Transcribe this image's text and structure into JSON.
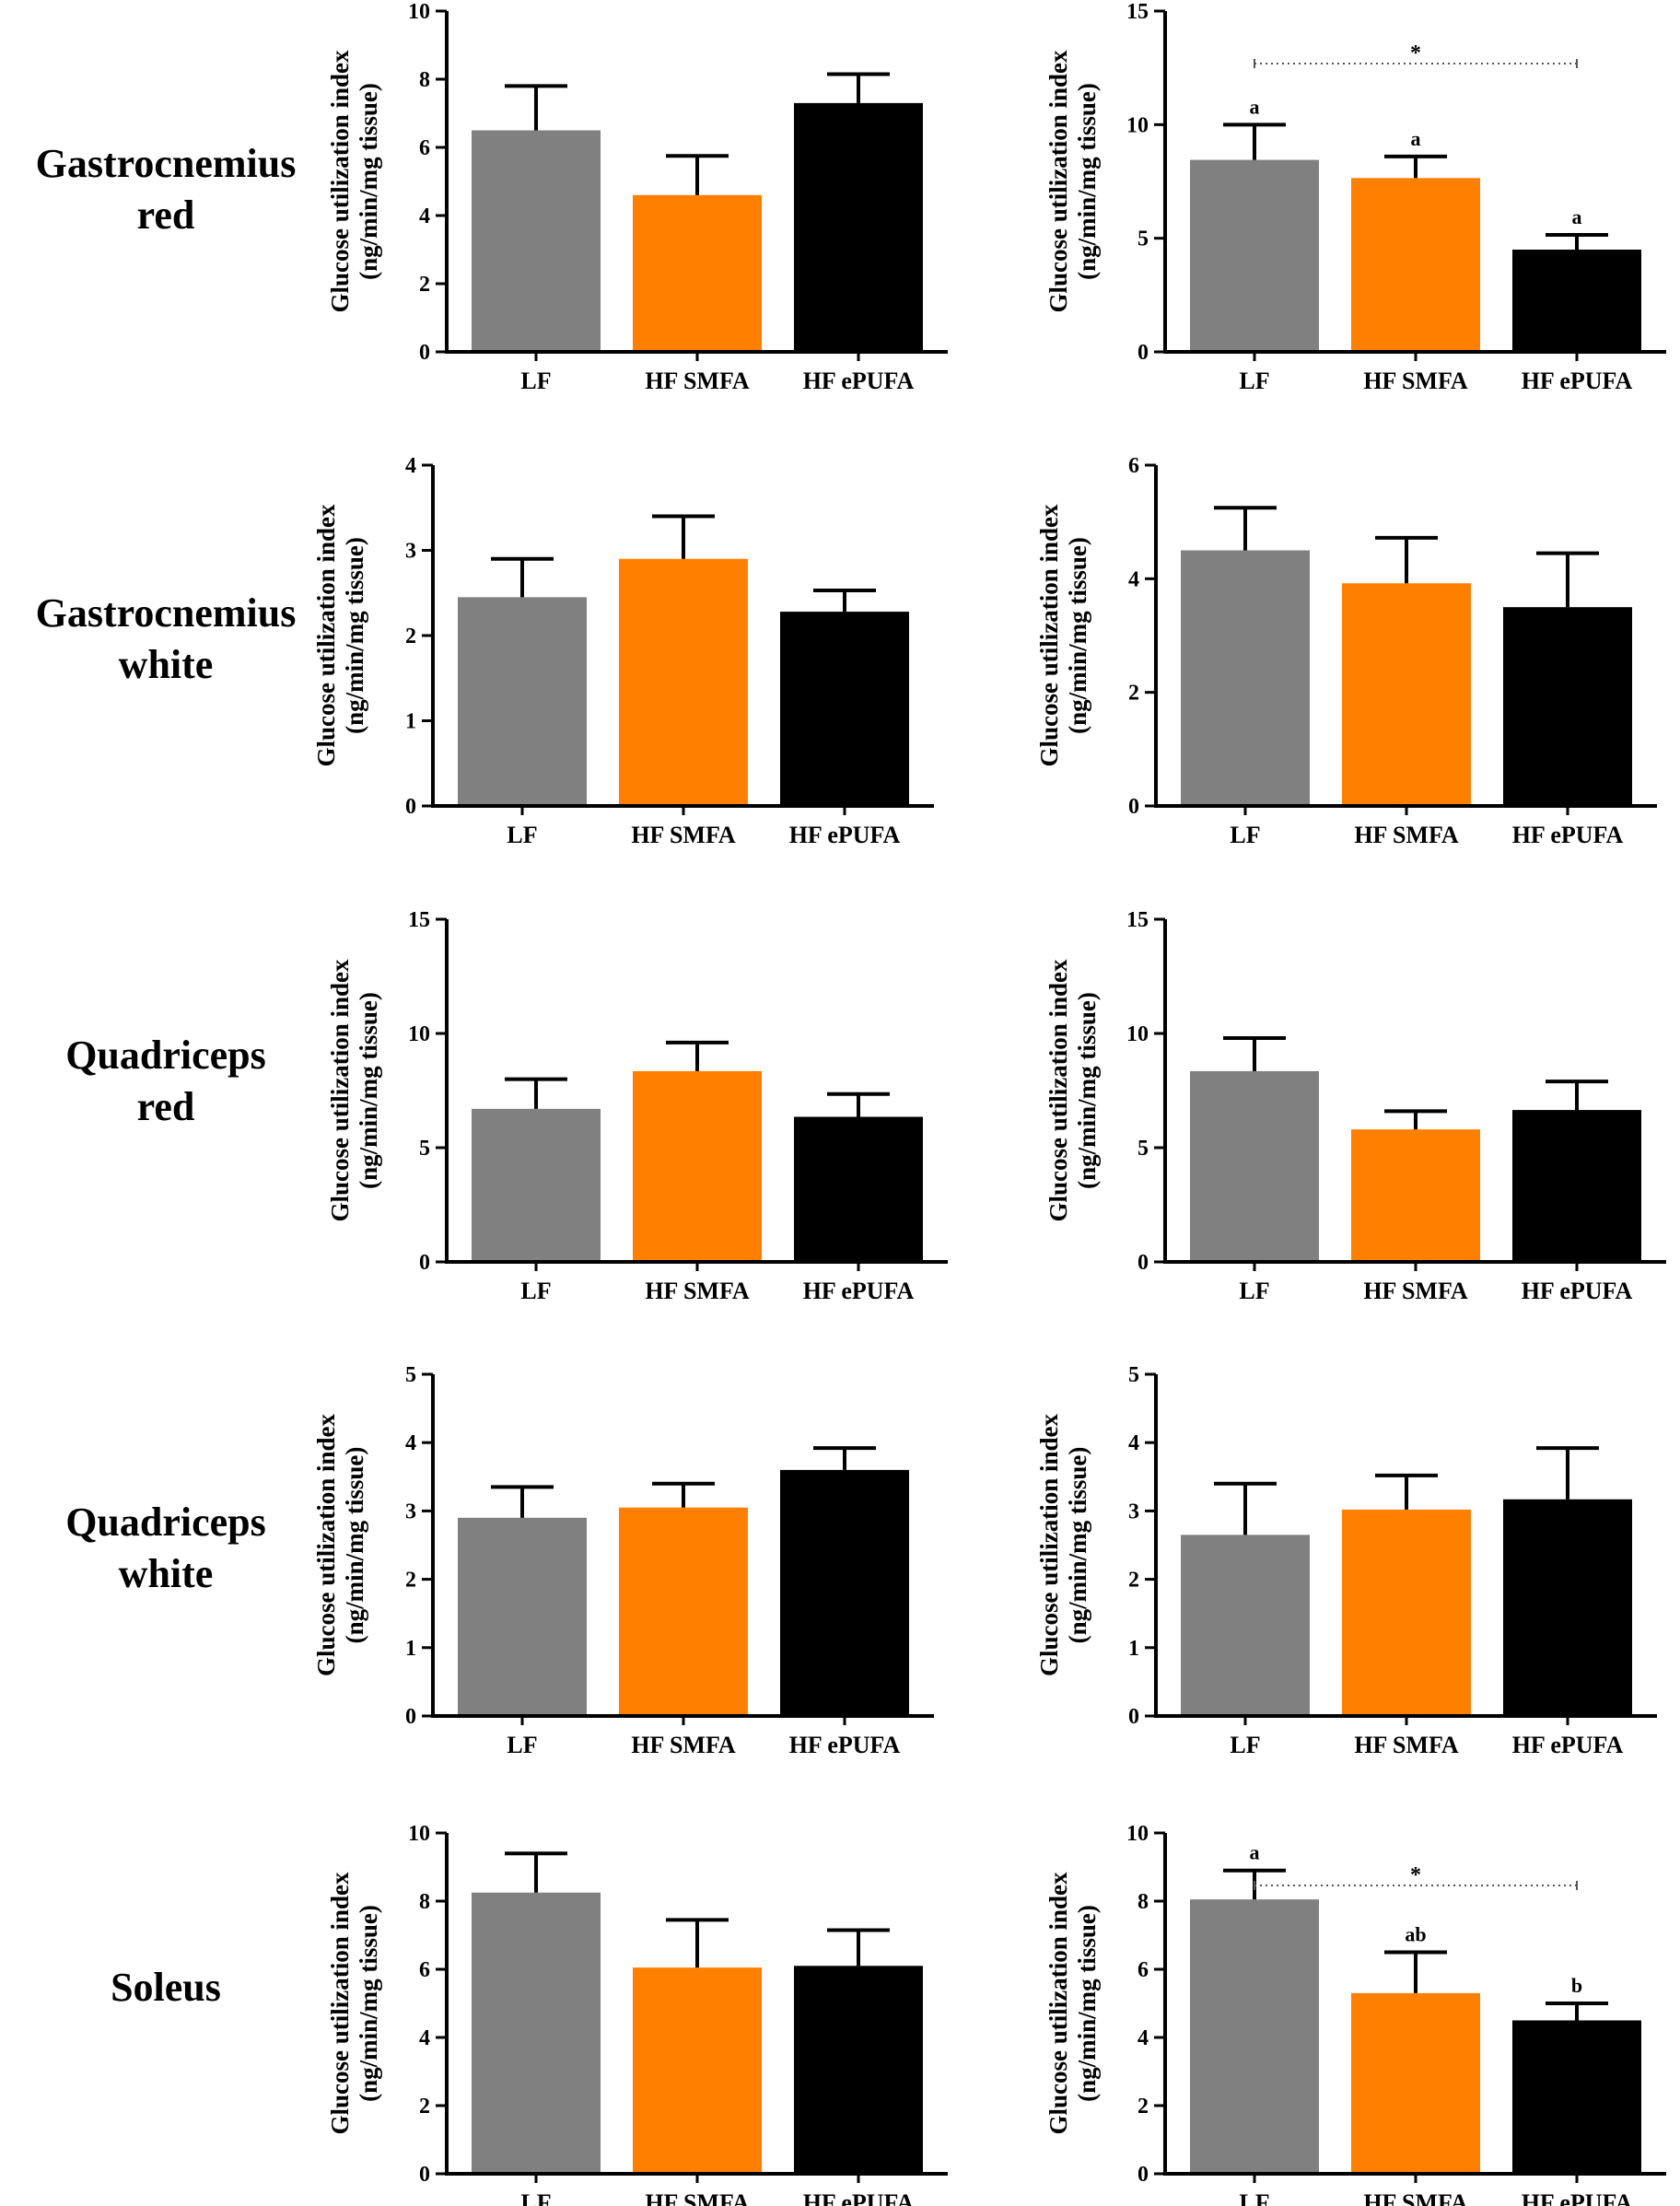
{
  "figure": {
    "y_label_line1": "Glucose utilization index",
    "y_label_line2": "(ng/min/mg tissue)",
    "colors": {
      "LF": "#808080",
      "HF SMFA": "#ff8000",
      "HF ePUFA": "#000000"
    }
  },
  "rows": [
    {
      "label_line1": "Gastrocnemius",
      "label_line2": "red"
    },
    {
      "label_line1": "Gastrocnemius",
      "label_line2": "white"
    },
    {
      "label_line1": "Quadriceps",
      "label_line2": "red"
    },
    {
      "label_line1": "Quadriceps",
      "label_line2": "white"
    },
    {
      "label_line1": "Soleus",
      "label_line2": ""
    }
  ],
  "chart_data": [
    {
      "type": "bar",
      "row": "Gastrocnemius red",
      "column": "left",
      "categories": [
        "LF",
        "HF SMFA",
        "HF ePUFA"
      ],
      "values": [
        6.5,
        4.6,
        7.3
      ],
      "errors": [
        1.3,
        1.15,
        0.85
      ],
      "ylim": [
        0,
        10
      ],
      "yticks": [
        0,
        2,
        4,
        6,
        8,
        10
      ],
      "ylabel": "Glucose utilization index (ng/min/mg tissue)",
      "letters": [
        "",
        "",
        ""
      ],
      "significance": ""
    },
    {
      "type": "bar",
      "row": "Gastrocnemius red",
      "column": "right",
      "categories": [
        "LF",
        "HF SMFA",
        "HF ePUFA"
      ],
      "values": [
        8.45,
        7.65,
        4.5
      ],
      "errors": [
        1.55,
        0.95,
        0.65
      ],
      "ylim": [
        0,
        15
      ],
      "yticks": [
        0,
        5,
        10,
        15
      ],
      "ylabel": "Glucose utilization index (ng/min/mg tissue)",
      "letters": [
        "a",
        "a",
        "a"
      ],
      "significance": "*"
    },
    {
      "type": "bar",
      "row": "Gastrocnemius white",
      "column": "left",
      "categories": [
        "LF",
        "HF SMFA",
        "HF ePUFA"
      ],
      "values": [
        2.45,
        2.9,
        2.28
      ],
      "errors": [
        0.45,
        0.5,
        0.25
      ],
      "ylim": [
        0,
        4
      ],
      "yticks": [
        0,
        1,
        2,
        3,
        4
      ],
      "ylabel": "Glucose utilization index (ng/min/mg tissue)",
      "letters": [
        "",
        "",
        ""
      ],
      "significance": ""
    },
    {
      "type": "bar",
      "row": "Gastrocnemius white",
      "column": "right",
      "categories": [
        "LF",
        "HF SMFA",
        "HF ePUFA"
      ],
      "values": [
        4.5,
        3.92,
        3.5
      ],
      "errors": [
        0.75,
        0.8,
        0.95
      ],
      "ylim": [
        0,
        6
      ],
      "yticks": [
        0,
        2,
        4,
        6
      ],
      "ylabel": "Glucose utilization index (ng/min/mg tissue)",
      "letters": [
        "",
        "",
        ""
      ],
      "significance": ""
    },
    {
      "type": "bar",
      "row": "Quadriceps red",
      "column": "left",
      "categories": [
        "LF",
        "HF SMFA",
        "HF ePUFA"
      ],
      "values": [
        6.7,
        8.35,
        6.35
      ],
      "errors": [
        1.3,
        1.25,
        1.0
      ],
      "ylim": [
        0,
        15
      ],
      "yticks": [
        0,
        5,
        10,
        15
      ],
      "ylabel": "Glucose utilization index (ng/min/mg tissue)",
      "letters": [
        "",
        "",
        ""
      ],
      "significance": ""
    },
    {
      "type": "bar",
      "row": "Quadriceps red",
      "column": "right",
      "categories": [
        "LF",
        "HF SMFA",
        "HF ePUFA"
      ],
      "values": [
        8.35,
        5.8,
        6.65
      ],
      "errors": [
        1.45,
        0.8,
        1.25
      ],
      "ylim": [
        0,
        15
      ],
      "yticks": [
        0,
        5,
        10,
        15
      ],
      "ylabel": "Glucose utilization index (ng/min/mg tissue)",
      "letters": [
        "",
        "",
        ""
      ],
      "significance": ""
    },
    {
      "type": "bar",
      "row": "Quadriceps white",
      "column": "left",
      "categories": [
        "LF",
        "HF SMFA",
        "HF ePUFA"
      ],
      "values": [
        2.9,
        3.05,
        3.6
      ],
      "errors": [
        0.45,
        0.35,
        0.32
      ],
      "ylim": [
        0,
        5
      ],
      "yticks": [
        0,
        1,
        2,
        3,
        4,
        5
      ],
      "ylabel": "Glucose utilization index (ng/min/mg tissue)",
      "letters": [
        "",
        "",
        ""
      ],
      "significance": ""
    },
    {
      "type": "bar",
      "row": "Quadriceps white",
      "column": "right",
      "categories": [
        "LF",
        "HF SMFA",
        "HF ePUFA"
      ],
      "values": [
        2.65,
        3.02,
        3.17
      ],
      "errors": [
        0.75,
        0.5,
        0.75
      ],
      "ylim": [
        0,
        5
      ],
      "yticks": [
        0,
        1,
        2,
        3,
        4,
        5
      ],
      "ylabel": "Glucose utilization index (ng/min/mg tissue)",
      "letters": [
        "",
        "",
        ""
      ],
      "significance": ""
    },
    {
      "type": "bar",
      "row": "Soleus",
      "column": "left",
      "categories": [
        "LF",
        "HF SMFA",
        "HF ePUFA"
      ],
      "values": [
        8.25,
        6.05,
        6.1
      ],
      "errors": [
        1.15,
        1.4,
        1.05
      ],
      "ylim": [
        0,
        10
      ],
      "yticks": [
        0,
        2,
        4,
        6,
        8,
        10
      ],
      "ylabel": "Glucose utilization index (ng/min/mg tissue)",
      "letters": [
        "",
        "",
        ""
      ],
      "significance": ""
    },
    {
      "type": "bar",
      "row": "Soleus",
      "column": "right",
      "categories": [
        "LF",
        "HF SMFA",
        "HF ePUFA"
      ],
      "values": [
        8.05,
        5.3,
        4.5
      ],
      "errors": [
        0.85,
        1.2,
        0.5
      ],
      "ylim": [
        0,
        10
      ],
      "yticks": [
        0,
        2,
        4,
        6,
        8,
        10
      ],
      "ylabel": "Glucose utilization index (ng/min/mg tissue)",
      "letters": [
        "a",
        "ab",
        "b"
      ],
      "significance": "*"
    }
  ]
}
